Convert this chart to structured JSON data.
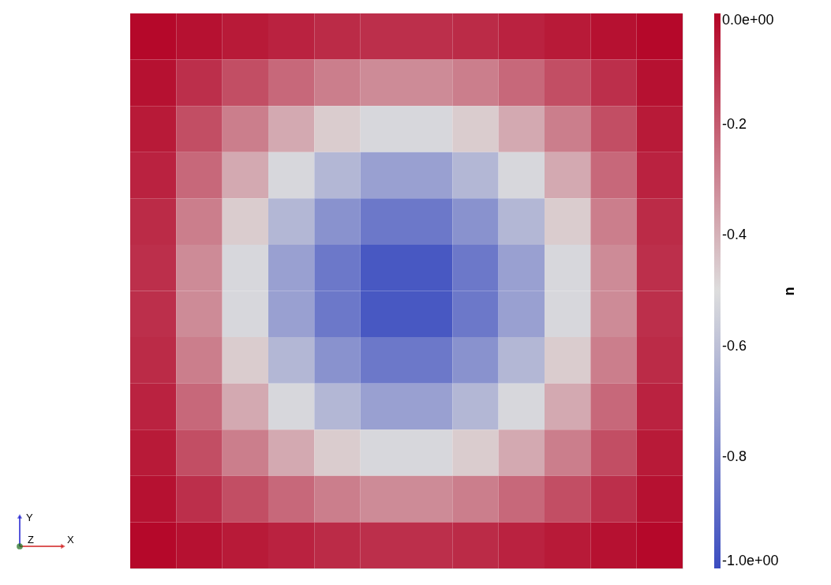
{
  "chart_data": {
    "type": "heatmap",
    "clabel": "u",
    "categories": [
      null,
      null,
      null,
      null,
      null,
      null,
      null,
      null,
      null,
      null,
      null,
      null
    ],
    "y_categories": [
      null,
      null,
      null,
      null,
      null,
      null,
      null,
      null,
      null,
      null,
      null,
      null
    ],
    "cells": [
      [
        -0.01,
        -0.03,
        -0.05,
        -0.07,
        -0.09,
        -0.1,
        -0.1,
        -0.09,
        -0.07,
        -0.05,
        -0.03,
        -0.01
      ],
      [
        -0.03,
        -0.1,
        -0.17,
        -0.23,
        -0.28,
        -0.31,
        -0.31,
        -0.28,
        -0.23,
        -0.17,
        -0.1,
        -0.03
      ],
      [
        -0.05,
        -0.17,
        -0.28,
        -0.38,
        -0.46,
        -0.52,
        -0.52,
        -0.46,
        -0.38,
        -0.28,
        -0.17,
        -0.05
      ],
      [
        -0.07,
        -0.23,
        -0.38,
        -0.52,
        -0.63,
        -0.71,
        -0.71,
        -0.63,
        -0.52,
        -0.38,
        -0.23,
        -0.07
      ],
      [
        -0.09,
        -0.28,
        -0.46,
        -0.63,
        -0.76,
        -0.85,
        -0.85,
        -0.76,
        -0.63,
        -0.46,
        -0.28,
        -0.09
      ],
      [
        -0.1,
        -0.31,
        -0.52,
        -0.71,
        -0.85,
        -0.96,
        -0.96,
        -0.85,
        -0.71,
        -0.52,
        -0.31,
        -0.1
      ],
      [
        -0.1,
        -0.31,
        -0.52,
        -0.71,
        -0.85,
        -0.96,
        -0.96,
        -0.85,
        -0.71,
        -0.52,
        -0.31,
        -0.1
      ],
      [
        -0.09,
        -0.28,
        -0.46,
        -0.63,
        -0.76,
        -0.85,
        -0.85,
        -0.76,
        -0.63,
        -0.46,
        -0.28,
        -0.09
      ],
      [
        -0.07,
        -0.23,
        -0.38,
        -0.52,
        -0.63,
        -0.71,
        -0.71,
        -0.63,
        -0.52,
        -0.38,
        -0.23,
        -0.07
      ],
      [
        -0.05,
        -0.17,
        -0.28,
        -0.38,
        -0.46,
        -0.52,
        -0.52,
        -0.46,
        -0.38,
        -0.28,
        -0.17,
        -0.05
      ],
      [
        -0.03,
        -0.1,
        -0.17,
        -0.23,
        -0.28,
        -0.31,
        -0.31,
        -0.28,
        -0.23,
        -0.17,
        -0.1,
        -0.03
      ],
      [
        -0.01,
        -0.03,
        -0.05,
        -0.07,
        -0.09,
        -0.1,
        -0.1,
        -0.09,
        -0.07,
        -0.05,
        -0.03,
        -0.01
      ]
    ],
    "clim": [
      -1,
      0
    ],
    "cticks": [
      {
        "value": 0,
        "label": "0.0e+00"
      },
      -0.2,
      -0.4,
      -0.6,
      -0.8,
      {
        "value": -1,
        "label": "-1.0e+00"
      }
    ],
    "annotations": [
      "Y",
      "Z",
      "X"
    ]
  }
}
